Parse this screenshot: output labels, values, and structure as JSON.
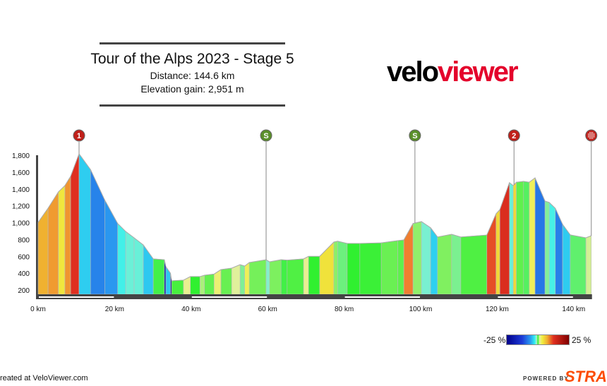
{
  "header": {
    "title": "Tour of the Alps 2023 - Stage 5",
    "distance": "Distance: 144.6 km",
    "elevation_gain": "Elevation gain: 2,951 m"
  },
  "logo": {
    "part1": "velo",
    "part2": "viewer"
  },
  "footer": {
    "created": "Created at VeloViewer.com",
    "powered_by": "POWERED BY",
    "strava": "STRAVA"
  },
  "legend": {
    "min_label": "-25 %",
    "max_label": "25 %"
  },
  "colors": {
    "brand_red": "#e4002b",
    "strava": "#fc4c02",
    "kom": "#c0201a",
    "sprint": "#5a8f2a"
  },
  "chart_data": {
    "type": "area",
    "title": "",
    "xlabel": "",
    "ylabel": "",
    "xlim": [
      0,
      144.6
    ],
    "ylim": [
      100,
      1800
    ],
    "x_ticks": [
      0,
      20,
      40,
      60,
      80,
      100,
      120,
      140
    ],
    "x_tick_labels": [
      "0 km",
      "20 km",
      "40 km",
      "60 km",
      "80 km",
      "100 km",
      "120 km",
      "140 km"
    ],
    "y_ticks": [
      200,
      400,
      600,
      800,
      1000,
      1200,
      1400,
      1600,
      1800
    ],
    "y_tick_labels": [
      "200",
      "400",
      "600",
      "800",
      "1,000",
      "1,200",
      "1,400",
      "1,600",
      "1,800"
    ],
    "color_by": "gradient %",
    "gradient_range": [
      -25,
      25
    ],
    "profile_km": [
      0,
      2.6,
      5.3,
      7.0,
      8.5,
      10.7,
      13.7,
      17.4,
      20.8,
      22.9,
      25.1,
      27.5,
      30.1,
      33,
      33.4,
      34.6,
      34.9,
      38,
      39.8,
      42.3,
      43.5,
      46,
      47.8,
      50.6,
      52.8,
      54,
      55.2,
      59.6,
      60.5,
      63.5,
      65.1,
      69.4,
      70.7,
      73.6,
      77.3,
      78.3,
      80.8,
      84.1,
      89.7,
      94,
      95.6,
      98,
      100.2,
      102.6,
      104.4,
      108.1,
      110.5,
      117.3,
      119.7,
      120.7,
      123.2,
      124.2,
      125,
      126.9,
      128.4,
      129.9,
      132.5,
      133.6,
      135.2,
      137.1,
      139.1,
      143.2,
      144.6
    ],
    "profile_elev_m": [
      1004,
      1172,
      1365,
      1440,
      1550,
      1817,
      1630,
      1270,
      990,
      895,
      820,
      736,
      570,
      560,
      477,
      400,
      310,
      318,
      360,
      360,
      376,
      390,
      443,
      460,
      502,
      485,
      527,
      560,
      535,
      560,
      555,
      570,
      600,
      600,
      770,
      780,
      753,
      753,
      760,
      787,
      795,
      990,
      1013,
      940,
      830,
      862,
      830,
      853,
      1105,
      1155,
      1475,
      1440,
      1480,
      1490,
      1480,
      1532,
      1256,
      1240,
      1170,
      980,
      855,
      820,
      845
    ],
    "markers": [
      {
        "km": 10.7,
        "label": "1",
        "type": "kom"
      },
      {
        "km": 59.6,
        "label": "S",
        "type": "sprint"
      },
      {
        "km": 98.5,
        "label": "S",
        "type": "sprint"
      },
      {
        "km": 124.4,
        "label": "2",
        "type": "kom"
      },
      {
        "km": 144.6,
        "label": "",
        "type": "finish"
      }
    ]
  }
}
